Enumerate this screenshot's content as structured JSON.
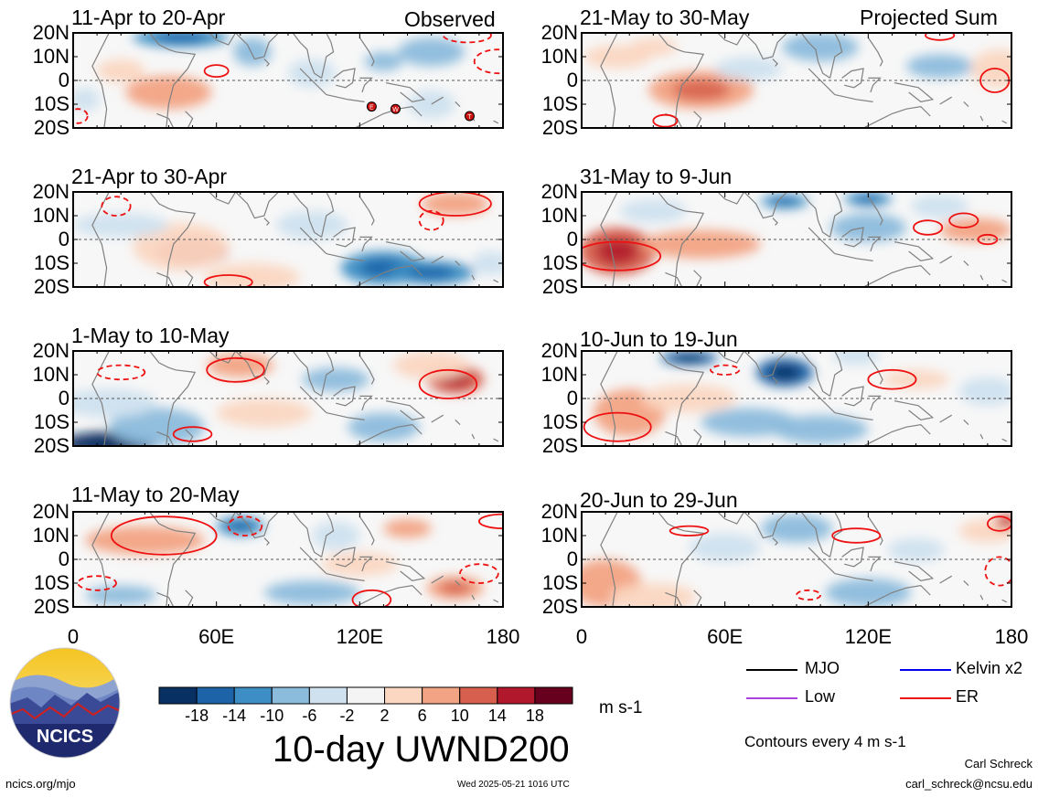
{
  "colors": {
    "levels": [
      "#083063",
      "#1c63a8",
      "#3d8ec4",
      "#8cbcdc",
      "#cfe1ef",
      "#f4f4f4",
      "#fbd7c2",
      "#f2a383",
      "#d6604d",
      "#b2182b",
      "#67001f"
    ],
    "contour_er": "#ee1111",
    "mjo": "#000000",
    "kelvin": "#0000ee",
    "low": "#aa44dd",
    "coast": "#808080"
  },
  "chart_data": {
    "type": "heatmap",
    "variable": "10-day UWND200",
    "units": "m s-1",
    "x_ticks": [
      "0",
      "60E",
      "120E",
      "180"
    ],
    "y_ticks": [
      "20N",
      "10N",
      "0",
      "10S",
      "20S"
    ],
    "xlim": [
      0,
      180
    ],
    "ylim": [
      -20,
      20
    ],
    "colorbar_ticks": [
      "-18",
      "-14",
      "-10",
      "-6",
      "-2",
      "2",
      "6",
      "10",
      "14",
      "18"
    ],
    "contour_note": "Contours every 4 m s-1",
    "legend": [
      {
        "label": "MJO",
        "color": "#000000"
      },
      {
        "label": "Kelvin x2",
        "color": "#0000ee"
      },
      {
        "label": "Low",
        "color": "#aa44dd"
      },
      {
        "label": "ER",
        "color": "#ee1111"
      }
    ],
    "panels": [
      {
        "title": "11-Apr to 20-Apr",
        "tag": "Observed",
        "blobs": [
          [
            40,
            -5,
            18,
            7,
            9
          ],
          [
            20,
            4,
            10,
            5,
            5
          ],
          [
            45,
            18,
            20,
            4,
            -12
          ],
          [
            75,
            12,
            8,
            6,
            -6
          ],
          [
            100,
            3,
            10,
            6,
            -5
          ],
          [
            150,
            12,
            14,
            6,
            -6
          ],
          [
            130,
            8,
            8,
            4,
            -6
          ],
          [
            5,
            -8,
            6,
            5,
            -5
          ],
          [
            150,
            -10,
            10,
            6,
            -3
          ]
        ],
        "er": [
          [
            60,
            4,
            5,
            2.5,
            "s"
          ],
          [
            165,
            19,
            10,
            3,
            "d"
          ],
          [
            178,
            8,
            10,
            5,
            "d"
          ],
          [
            2,
            -15,
            4,
            3,
            "d"
          ]
        ],
        "storms": [
          [
            125,
            -11,
            "E"
          ],
          [
            135,
            -12,
            "W"
          ],
          [
            166,
            -15,
            "T"
          ]
        ]
      },
      {
        "title": "21-May to 30-May",
        "tag": "Projected Sum",
        "blobs": [
          [
            50,
            -4,
            22,
            8,
            10
          ],
          [
            15,
            10,
            14,
            5,
            4
          ],
          [
            70,
            5,
            14,
            5,
            -5
          ],
          [
            100,
            14,
            16,
            6,
            -6
          ],
          [
            150,
            6,
            14,
            5,
            -6
          ],
          [
            175,
            5,
            12,
            8,
            6
          ],
          [
            30,
            14,
            10,
            4,
            5
          ]
        ],
        "er": [
          [
            173,
            0,
            6,
            5,
            "s"
          ],
          [
            35,
            -17,
            5,
            2.5,
            "s"
          ],
          [
            150,
            19,
            6,
            2,
            "s"
          ]
        ],
        "storms": []
      },
      {
        "title": "21-Apr to 30-Apr",
        "tag": "",
        "blobs": [
          [
            50,
            -5,
            15,
            6,
            17
          ],
          [
            45,
            -3,
            20,
            10,
            5
          ],
          [
            75,
            -16,
            20,
            6,
            5
          ],
          [
            130,
            -12,
            18,
            7,
            -12
          ],
          [
            150,
            -14,
            18,
            5,
            -10
          ],
          [
            160,
            15,
            14,
            5,
            7
          ],
          [
            100,
            6,
            15,
            6,
            -5
          ],
          [
            20,
            6,
            20,
            5,
            -4
          ],
          [
            175,
            -10,
            8,
            5,
            -5
          ]
        ],
        "er": [
          [
            160,
            15,
            15,
            5,
            "s"
          ],
          [
            150,
            8,
            5,
            4,
            "d"
          ],
          [
            18,
            14,
            6,
            4,
            "d"
          ],
          [
            65,
            -18,
            10,
            3,
            "s"
          ]
        ],
        "storms": []
      },
      {
        "title": "31-May to 9-Jun",
        "tag": "",
        "blobs": [
          [
            15,
            -5,
            16,
            10,
            12
          ],
          [
            50,
            -2,
            25,
            6,
            7
          ],
          [
            85,
            16,
            10,
            3,
            -13
          ],
          [
            120,
            17,
            10,
            3,
            -12
          ],
          [
            165,
            4,
            15,
            5,
            7
          ],
          [
            120,
            5,
            16,
            6,
            -6
          ],
          [
            30,
            12,
            14,
            5,
            -5
          ],
          [
            150,
            14,
            12,
            5,
            -5
          ]
        ],
        "er": [
          [
            15,
            -7,
            18,
            6,
            "s"
          ],
          [
            145,
            5,
            6,
            3,
            "s"
          ],
          [
            160,
            8,
            6,
            3,
            "s"
          ],
          [
            170,
            0,
            4,
            2,
            "s"
          ]
        ],
        "storms": []
      },
      {
        "title": "1-May to 10-May",
        "tag": "",
        "blobs": [
          [
            15,
            -19,
            20,
            5,
            -18
          ],
          [
            35,
            -12,
            20,
            8,
            -8
          ],
          [
            160,
            8,
            12,
            6,
            12
          ],
          [
            150,
            14,
            16,
            6,
            6
          ],
          [
            70,
            14,
            14,
            5,
            7
          ],
          [
            80,
            -6,
            20,
            6,
            5
          ],
          [
            110,
            8,
            14,
            5,
            -6
          ],
          [
            130,
            -12,
            15,
            6,
            -6
          ],
          [
            15,
            -2,
            20,
            6,
            -5
          ]
        ],
        "er": [
          [
            157,
            6,
            12,
            6,
            "s"
          ],
          [
            68,
            12,
            12,
            5,
            "s"
          ],
          [
            20,
            11,
            10,
            3,
            "d"
          ],
          [
            50,
            -15,
            8,
            3,
            "s"
          ]
        ],
        "storms": []
      },
      {
        "title": "10-Jun to 19-Jun",
        "tag": "",
        "blobs": [
          [
            45,
            17,
            12,
            3,
            -16
          ],
          [
            85,
            11,
            12,
            6,
            -14
          ],
          [
            20,
            -6,
            15,
            10,
            8
          ],
          [
            45,
            0,
            20,
            6,
            5
          ],
          [
            140,
            8,
            14,
            4,
            6
          ],
          [
            70,
            -10,
            20,
            6,
            -6
          ],
          [
            100,
            -13,
            20,
            6,
            -8
          ],
          [
            170,
            3,
            12,
            6,
            -5
          ],
          [
            115,
            18,
            10,
            4,
            -4
          ]
        ],
        "er": [
          [
            130,
            8,
            10,
            4,
            "s"
          ],
          [
            15,
            -12,
            14,
            6,
            "s"
          ],
          [
            60,
            12,
            6,
            2,
            "d"
          ]
        ],
        "storms": []
      },
      {
        "title": "11-May to 20-May",
        "tag": "",
        "blobs": [
          [
            30,
            8,
            25,
            6,
            7
          ],
          [
            70,
            14,
            10,
            4,
            -10
          ],
          [
            160,
            -12,
            12,
            5,
            10
          ],
          [
            140,
            13,
            10,
            4,
            8
          ],
          [
            100,
            -14,
            20,
            5,
            -7
          ],
          [
            110,
            10,
            10,
            6,
            -5
          ],
          [
            20,
            -15,
            15,
            4,
            -6
          ],
          [
            120,
            -2,
            16,
            5,
            4
          ]
        ],
        "er": [
          [
            38,
            10,
            22,
            8,
            "s"
          ],
          [
            72,
            14,
            7,
            4,
            "d"
          ],
          [
            125,
            -17,
            8,
            4,
            "s"
          ],
          [
            170,
            -6,
            8,
            4,
            "d"
          ],
          [
            180,
            16,
            10,
            3,
            "s"
          ],
          [
            10,
            -10,
            8,
            3,
            "d"
          ]
        ],
        "storms": []
      },
      {
        "title": "20-Jun to 29-Jun",
        "tag": "",
        "blobs": [
          [
            10,
            -10,
            15,
            10,
            7
          ],
          [
            30,
            -16,
            18,
            6,
            5
          ],
          [
            90,
            13,
            15,
            6,
            -6
          ],
          [
            120,
            -14,
            18,
            6,
            -8
          ],
          [
            170,
            12,
            12,
            5,
            6
          ],
          [
            178,
            16,
            5,
            3,
            14
          ],
          [
            60,
            5,
            15,
            6,
            -4
          ],
          [
            140,
            4,
            12,
            5,
            -4
          ]
        ],
        "er": [
          [
            115,
            10,
            10,
            3,
            "s"
          ],
          [
            45,
            12,
            8,
            2,
            "s"
          ],
          [
            95,
            -15,
            5,
            2,
            "d"
          ],
          [
            175,
            -5,
            6,
            6,
            "d"
          ],
          [
            175,
            15,
            5,
            3,
            "s"
          ]
        ],
        "storms": []
      }
    ]
  },
  "footer": {
    "logo_text": "NCICS",
    "url": "ncics.org/mjo",
    "timestamp": "Wed 2025-05-21 1016 UTC",
    "author": "Carl Schreck",
    "email": "carl_schreck@ncsu.edu"
  }
}
